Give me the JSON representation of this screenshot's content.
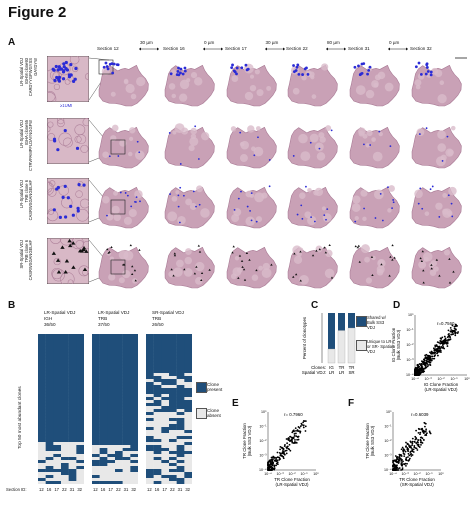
{
  "figure_title": "Figure 2",
  "panels": {
    "A": {
      "letter": "A",
      "sections": [
        "Section 12",
        "Section 16",
        "Section 17",
        "Section 22",
        "Section 31",
        "Section 32"
      ],
      "gaps": [
        "30 µm",
        "0 µm",
        "30 µm",
        "80 µm",
        "0 µm"
      ],
      "umi_label": "≥1UMI",
      "rows": [
        {
          "label": "LR-Spatial VDJ\nIGHM clone93\nCARDYYGPWGYSS\nGAYDYW",
          "dot_color": "#2b2bd6"
        },
        {
          "label": "LR-Spatial VDJ\nIGHA clone55\nCTRVPAMPFLDAYNGGFW",
          "dot_color": "#2b2bd6"
        },
        {
          "label": "LR-Spatial VDJ\nTRB clone 6\nCASRWSGANGELHF",
          "dot_color": "#2b2bd6"
        },
        {
          "label": "SR-Spatial VDJ\nTRB clone 6\nCASRWSGANGELHF",
          "dot_color": "#111111"
        }
      ]
    },
    "B": {
      "letter": "B",
      "groups": [
        {
          "title": "LR-Spatial VDJ",
          "chain": "IGH",
          "count": "36/50"
        },
        {
          "title": "LR-Spatial VDJ",
          "chain": "TRB",
          "count": "37/50"
        },
        {
          "title": "SR-Spatial VDJ",
          "chain": "TRB",
          "count": "26/50"
        }
      ],
      "y_label": "Top 50 most abundant clones",
      "section_id_label": "Section ID:",
      "section_ids": [
        "12",
        "16",
        "17",
        "22",
        "31",
        "32"
      ],
      "legend_present": "Clone\npresent",
      "legend_absent": "Clone\nabsent",
      "present_color": "#1f4e7a",
      "absent_color": "#e8e8e8"
    },
    "C": {
      "letter": "C",
      "y_label": "Percent of clonotypes",
      "clones_label": "Clones:",
      "spatial_label": "Spatial VDJ:",
      "bars": [
        {
          "clone": "IG",
          "spatial": "LR",
          "shared": 0.72
        },
        {
          "clone": "TR",
          "spatial": "LR",
          "shared": 0.35
        },
        {
          "clone": "TR",
          "spatial": "SR",
          "shared": 0.3
        }
      ],
      "legend_shared": "Shared w/\nBulk SS3\nVDJ",
      "legend_unique": "Unique to LR-\nor SR- Spatial\nVDJ",
      "shared_color": "#1f4e7a",
      "unique_color": "#e8e8e8"
    },
    "D": {
      "letter": "D",
      "r": "r=0.7560",
      "ylabel": "IG Clone Fraction\n(Bulk SS3 VDJ)",
      "xlabel": "IG Clone Fraction\n(LR-Spatial VDJ)"
    },
    "E": {
      "letter": "E",
      "r": "r= 0.7960",
      "ylabel": "TR Clone Fraction\n(Bulk SS3 VDJ)",
      "xlabel": "TR Clone Fraction\n(LR-Spatial VDJ)"
    },
    "F": {
      "letter": "F",
      "r": "r=0.6039",
      "ylabel": "TR Clone Fraction\n(Bulk SS3 VDJ)",
      "xlabel": "TR Clone Fraction\n(SR-Spatial VDJ)"
    }
  },
  "scatter_ticks": [
    "10⁻⁴",
    "10⁻³",
    "10⁻²",
    "10⁻¹",
    "10⁰"
  ]
}
